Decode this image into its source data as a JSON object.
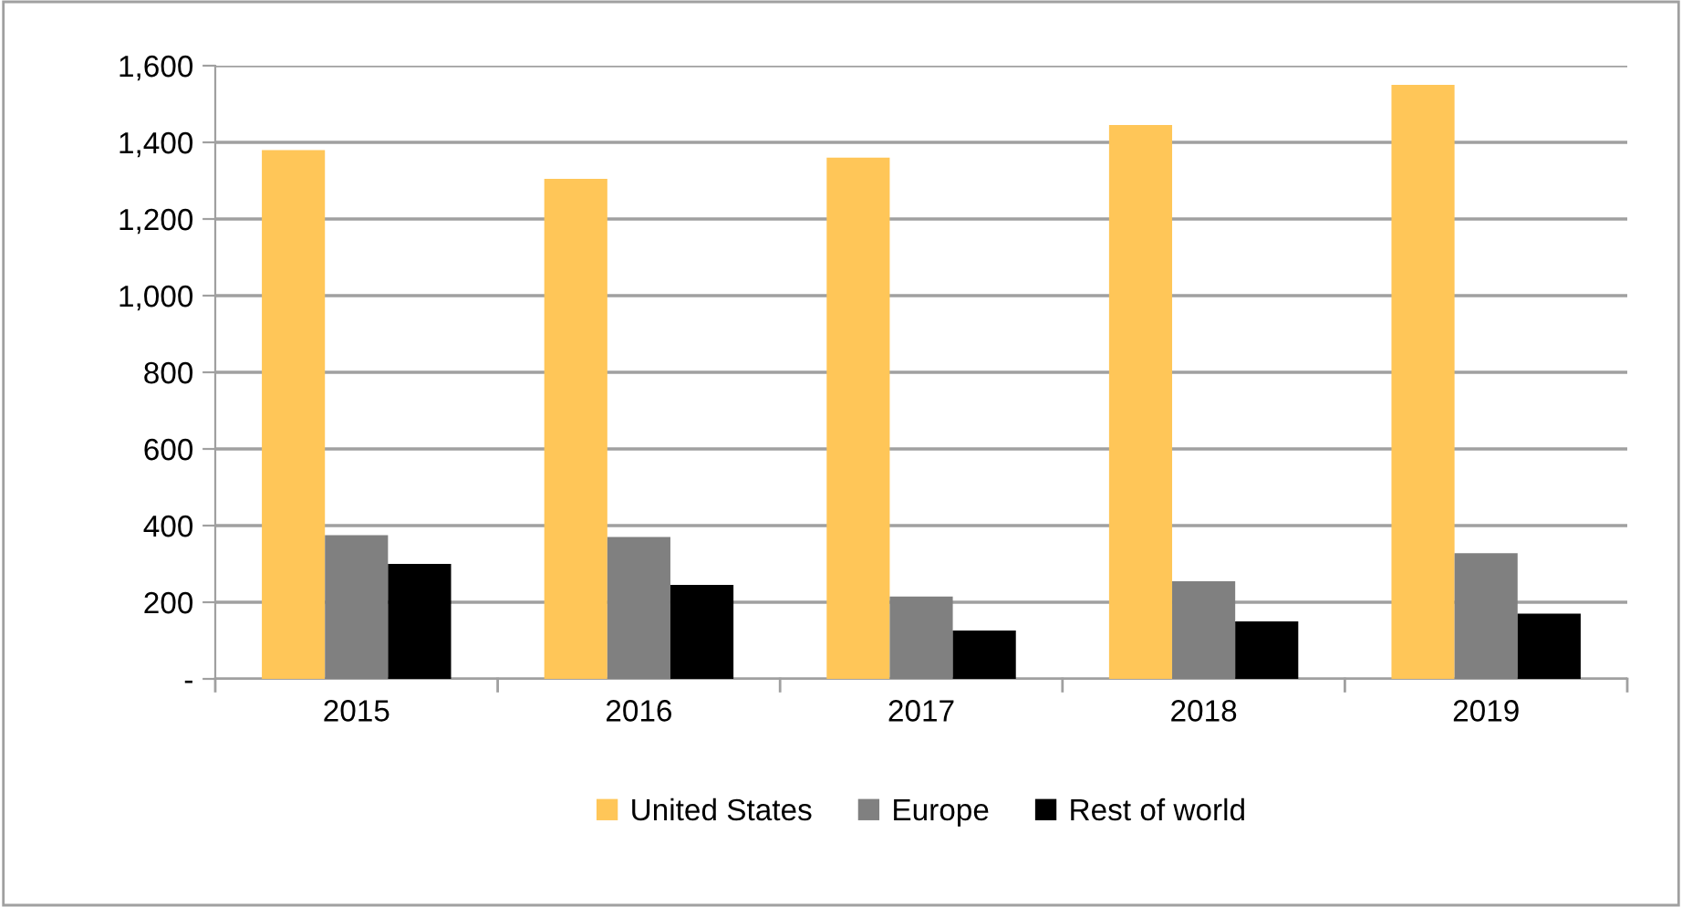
{
  "chart_data": {
    "type": "bar",
    "categories": [
      "2015",
      "2016",
      "2017",
      "2018",
      "2019"
    ],
    "series": [
      {
        "name": "United States",
        "color": "#ffc658",
        "values": [
          1380,
          1305,
          1360,
          1445,
          1550
        ]
      },
      {
        "name": "Europe",
        "color": "#808080",
        "values": [
          375,
          370,
          215,
          255,
          328
        ]
      },
      {
        "name": "Rest of world",
        "color": "#000000",
        "values": [
          300,
          245,
          126,
          150,
          170
        ]
      }
    ],
    "ylim": [
      0,
      1600
    ],
    "yticks": [
      {
        "value": 0,
        "label": "-"
      },
      {
        "value": 200,
        "label": "200"
      },
      {
        "value": 400,
        "label": "400"
      },
      {
        "value": 600,
        "label": "600"
      },
      {
        "value": 800,
        "label": "800"
      },
      {
        "value": 1000,
        "label": "1,000"
      },
      {
        "value": 1200,
        "label": "1,200"
      },
      {
        "value": 1400,
        "label": "1,400"
      },
      {
        "value": 1600,
        "label": "1,600"
      }
    ],
    "grid": "y",
    "legend": "bottom"
  }
}
